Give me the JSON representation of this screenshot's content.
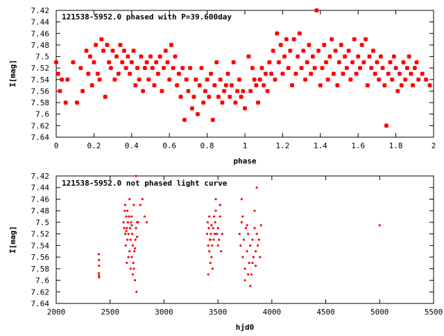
{
  "colors": {
    "points": "#ff0000",
    "axes": "#000000",
    "background": "#ffffff"
  },
  "chart_data": [
    {
      "type": "scatter",
      "annotation": "121538-5952.0 phased with P=39.600day",
      "xlabel": "phase",
      "ylabel": "I[mag]",
      "xlim": [
        0,
        2
      ],
      "ylim": [
        7.64,
        7.42
      ],
      "y_inverted": true,
      "grid": false,
      "x_ticks": [
        "0",
        "0.2",
        "0.4",
        "0.6",
        "0.8",
        "1",
        "1.2",
        "1.4",
        "1.6",
        "1.8",
        "2"
      ],
      "y_ticks": [
        "7.42",
        "7.44",
        "7.46",
        "7.48",
        "7.5",
        "7.52",
        "7.54",
        "7.56",
        "7.58",
        "7.6",
        "7.62",
        "7.64"
      ],
      "marker": "star",
      "points": [
        [
          0.0,
          7.51
        ],
        [
          0.01,
          7.53
        ],
        [
          0.02,
          7.56
        ],
        [
          0.03,
          7.54
        ],
        [
          0.05,
          7.58
        ],
        [
          0.06,
          7.54
        ],
        [
          0.09,
          7.51
        ],
        [
          0.11,
          7.58
        ],
        [
          0.13,
          7.52
        ],
        [
          0.14,
          7.56
        ],
        [
          0.16,
          7.49
        ],
        [
          0.17,
          7.53
        ],
        [
          0.18,
          7.5
        ],
        [
          0.19,
          7.55
        ],
        [
          0.2,
          7.51
        ],
        [
          0.21,
          7.48
        ],
        [
          0.22,
          7.53
        ],
        [
          0.23,
          7.54
        ],
        [
          0.24,
          7.47
        ],
        [
          0.25,
          7.49
        ],
        [
          0.26,
          7.57
        ],
        [
          0.27,
          7.48
        ],
        [
          0.28,
          7.51
        ],
        [
          0.29,
          7.52
        ],
        [
          0.3,
          7.49
        ],
        [
          0.31,
          7.54
        ],
        [
          0.32,
          7.5
        ],
        [
          0.33,
          7.53
        ],
        [
          0.34,
          7.48
        ],
        [
          0.35,
          7.51
        ],
        [
          0.36,
          7.49
        ],
        [
          0.37,
          7.52
        ],
        [
          0.38,
          7.5
        ],
        [
          0.39,
          7.53
        ],
        [
          0.4,
          7.51
        ],
        [
          0.41,
          7.49
        ],
        [
          0.42,
          7.55
        ],
        [
          0.43,
          7.52
        ],
        [
          0.44,
          7.54
        ],
        [
          0.45,
          7.5
        ],
        [
          0.46,
          7.56
        ],
        [
          0.47,
          7.52
        ],
        [
          0.48,
          7.51
        ],
        [
          0.49,
          7.54
        ],
        [
          0.5,
          7.5
        ],
        [
          0.51,
          7.52
        ],
        [
          0.52,
          7.55
        ],
        [
          0.53,
          7.51
        ],
        [
          0.54,
          7.53
        ],
        [
          0.55,
          7.5
        ],
        [
          0.56,
          7.56
        ],
        [
          0.57,
          7.52
        ],
        [
          0.58,
          7.49
        ],
        [
          0.59,
          7.51
        ],
        [
          0.6,
          7.54
        ],
        [
          0.61,
          7.48
        ],
        [
          0.62,
          7.52
        ],
        [
          0.63,
          7.5
        ],
        [
          0.64,
          7.55
        ],
        [
          0.65,
          7.53
        ],
        [
          0.66,
          7.57
        ],
        [
          0.67,
          7.52
        ],
        [
          0.68,
          7.61
        ],
        [
          0.69,
          7.54
        ],
        [
          0.7,
          7.56
        ],
        [
          0.71,
          7.52
        ],
        [
          0.72,
          7.59
        ],
        [
          0.73,
          7.57
        ],
        [
          0.74,
          7.54
        ],
        [
          0.75,
          7.6
        ],
        [
          0.76,
          7.55
        ],
        [
          0.77,
          7.52
        ],
        [
          0.78,
          7.58
        ],
        [
          0.79,
          7.56
        ],
        [
          0.8,
          7.54
        ],
        [
          0.81,
          7.57
        ],
        [
          0.82,
          7.53
        ],
        [
          0.83,
          7.61
        ],
        [
          0.84,
          7.55
        ],
        [
          0.85,
          7.51
        ],
        [
          0.86,
          7.57
        ],
        [
          0.87,
          7.54
        ],
        [
          0.88,
          7.58
        ],
        [
          0.89,
          7.56
        ],
        [
          0.9,
          7.55
        ],
        [
          0.91,
          7.53
        ],
        [
          0.92,
          7.57
        ],
        [
          0.93,
          7.55
        ],
        [
          0.94,
          7.51
        ],
        [
          0.95,
          7.58
        ],
        [
          0.96,
          7.56
        ],
        [
          0.97,
          7.54
        ],
        [
          0.98,
          7.57
        ],
        [
          0.99,
          7.56
        ],
        [
          1.0,
          7.59
        ],
        [
          1.02,
          7.5
        ],
        [
          1.03,
          7.56
        ],
        [
          1.04,
          7.52
        ],
        [
          1.05,
          7.54
        ],
        [
          1.06,
          7.55
        ],
        [
          1.07,
          7.58
        ],
        [
          1.08,
          7.54
        ],
        [
          1.09,
          7.52
        ],
        [
          1.1,
          7.55
        ],
        [
          1.11,
          7.53
        ],
        [
          1.12,
          7.56
        ],
        [
          1.13,
          7.51
        ],
        [
          1.14,
          7.53
        ],
        [
          1.15,
          7.49
        ],
        [
          1.16,
          7.54
        ],
        [
          1.17,
          7.46
        ],
        [
          1.18,
          7.51
        ],
        [
          1.19,
          7.48
        ],
        [
          1.2,
          7.53
        ],
        [
          1.21,
          7.5
        ],
        [
          1.22,
          7.47
        ],
        [
          1.23,
          7.52
        ],
        [
          1.24,
          7.49
        ],
        [
          1.25,
          7.55
        ],
        [
          1.26,
          7.47
        ],
        [
          1.27,
          7.53
        ],
        [
          1.28,
          7.5
        ],
        [
          1.29,
          7.46
        ],
        [
          1.3,
          7.52
        ],
        [
          1.31,
          7.49
        ],
        [
          1.32,
          7.54
        ],
        [
          1.33,
          7.51
        ],
        [
          1.34,
          7.48
        ],
        [
          1.35,
          7.53
        ],
        [
          1.36,
          7.5
        ],
        [
          1.37,
          7.52
        ],
        [
          1.38,
          7.42
        ],
        [
          1.39,
          7.49
        ],
        [
          1.4,
          7.55
        ],
        [
          1.41,
          7.52
        ],
        [
          1.42,
          7.48
        ],
        [
          1.43,
          7.51
        ],
        [
          1.44,
          7.54
        ],
        [
          1.45,
          7.5
        ],
        [
          1.46,
          7.47
        ],
        [
          1.47,
          7.53
        ],
        [
          1.48,
          7.49
        ],
        [
          1.49,
          7.55
        ],
        [
          1.5,
          7.51
        ],
        [
          1.51,
          7.48
        ],
        [
          1.52,
          7.53
        ],
        [
          1.53,
          7.5
        ],
        [
          1.54,
          7.52
        ],
        [
          1.55,
          7.49
        ],
        [
          1.56,
          7.54
        ],
        [
          1.57,
          7.51
        ],
        [
          1.58,
          7.47
        ],
        [
          1.59,
          7.53
        ],
        [
          1.6,
          7.5
        ],
        [
          1.61,
          7.52
        ],
        [
          1.62,
          7.48
        ],
        [
          1.63,
          7.51
        ],
        [
          1.64,
          7.47
        ],
        [
          1.65,
          7.55
        ],
        [
          1.66,
          7.5
        ],
        [
          1.67,
          7.52
        ],
        [
          1.68,
          7.49
        ],
        [
          1.69,
          7.53
        ],
        [
          1.7,
          7.51
        ],
        [
          1.71,
          7.54
        ],
        [
          1.72,
          7.5
        ],
        [
          1.73,
          7.52
        ],
        [
          1.74,
          7.55
        ],
        [
          1.75,
          7.62
        ],
        [
          1.76,
          7.53
        ],
        [
          1.77,
          7.51
        ],
        [
          1.78,
          7.54
        ],
        [
          1.79,
          7.5
        ],
        [
          1.8,
          7.52
        ],
        [
          1.81,
          7.56
        ],
        [
          1.82,
          7.53
        ],
        [
          1.83,
          7.55
        ],
        [
          1.84,
          7.51
        ],
        [
          1.85,
          7.54
        ],
        [
          1.86,
          7.52
        ],
        [
          1.87,
          7.5
        ],
        [
          1.88,
          7.53
        ],
        [
          1.89,
          7.55
        ],
        [
          1.9,
          7.52
        ],
        [
          1.91,
          7.51
        ],
        [
          1.92,
          7.54
        ],
        [
          1.94,
          7.53
        ],
        [
          1.96,
          7.54
        ],
        [
          1.98,
          7.55
        ]
      ]
    },
    {
      "type": "scatter",
      "annotation": "121538-5952.0 not phased light curve",
      "xlabel": "hjd0",
      "ylabel": "I[mag]",
      "xlim": [
        2000,
        5500
      ],
      "ylim": [
        7.64,
        7.42
      ],
      "y_inverted": true,
      "grid": false,
      "x_ticks": [
        "2000",
        "2500",
        "3000",
        "3500",
        "4000",
        "4500",
        "5000",
        "5500"
      ],
      "y_ticks": [
        "7.42",
        "7.44",
        "7.46",
        "7.48",
        "7.5",
        "7.52",
        "7.54",
        "7.56",
        "7.58",
        "7.6",
        "7.62",
        "7.64"
      ],
      "marker": "dot",
      "points": [
        [
          2395,
          7.555
        ],
        [
          2397,
          7.565
        ],
        [
          2398,
          7.575
        ],
        [
          2396,
          7.588
        ],
        [
          2397,
          7.592
        ],
        [
          2398,
          7.595
        ],
        [
          2625,
          7.5
        ],
        [
          2630,
          7.51
        ],
        [
          2635,
          7.48
        ],
        [
          2640,
          7.52
        ],
        [
          2645,
          7.54
        ],
        [
          2650,
          7.49
        ],
        [
          2655,
          7.51
        ],
        [
          2660,
          7.53
        ],
        [
          2665,
          7.5
        ],
        [
          2670,
          7.52
        ],
        [
          2675,
          7.49
        ],
        [
          2680,
          7.55
        ],
        [
          2685,
          7.51
        ],
        [
          2690,
          7.53
        ],
        [
          2695,
          7.5
        ],
        [
          2700,
          7.56
        ],
        [
          2705,
          7.52
        ],
        [
          2710,
          7.54
        ],
        [
          2715,
          7.57
        ],
        [
          2720,
          7.58
        ],
        [
          2725,
          7.55
        ],
        [
          2730,
          7.6
        ],
        [
          2735,
          7.53
        ],
        [
          2740,
          7.51
        ],
        [
          2745,
          7.62
        ],
        [
          2750,
          7.5
        ],
        [
          2640,
          7.47
        ],
        [
          2660,
          7.48
        ],
        [
          2680,
          7.46
        ],
        [
          2700,
          7.49
        ],
        [
          2720,
          7.47
        ],
        [
          2740,
          7.42
        ],
        [
          2760,
          7.5
        ],
        [
          2780,
          7.47
        ],
        [
          2800,
          7.46
        ],
        [
          2820,
          7.49
        ],
        [
          2840,
          7.5
        ],
        [
          2655,
          7.57
        ],
        [
          2670,
          7.56
        ],
        [
          2690,
          7.58
        ],
        [
          2710,
          7.59
        ],
        [
          2730,
          7.545
        ],
        [
          2650,
          7.515
        ],
        [
          2700,
          7.505
        ],
        [
          2750,
          7.525
        ],
        [
          3400,
          7.52
        ],
        [
          3405,
          7.5
        ],
        [
          3410,
          7.54
        ],
        [
          3415,
          7.51
        ],
        [
          3420,
          7.55
        ],
        [
          3425,
          7.53
        ],
        [
          3430,
          7.57
        ],
        [
          3435,
          7.52
        ],
        [
          3440,
          7.56
        ],
        [
          3445,
          7.54
        ],
        [
          3450,
          7.58
        ],
        [
          3455,
          7.51
        ],
        [
          3460,
          7.53
        ],
        [
          3465,
          7.49
        ],
        [
          3470,
          7.52
        ],
        [
          3475,
          7.5
        ],
        [
          3480,
          7.48
        ],
        [
          3490,
          7.52
        ],
        [
          3500,
          7.51
        ],
        [
          3510,
          7.53
        ],
        [
          3520,
          7.49
        ],
        [
          3530,
          7.55
        ],
        [
          3540,
          7.52
        ],
        [
          3410,
          7.59
        ],
        [
          3420,
          7.49
        ],
        [
          3430,
          7.53
        ],
        [
          3480,
          7.46
        ],
        [
          3520,
          7.47
        ],
        [
          3440,
          7.505
        ],
        [
          3500,
          7.54
        ],
        [
          3700,
          7.52
        ],
        [
          3710,
          7.54
        ],
        [
          3720,
          7.5
        ],
        [
          3730,
          7.56
        ],
        [
          3740,
          7.53
        ],
        [
          3750,
          7.58
        ],
        [
          3760,
          7.51
        ],
        [
          3770,
          7.55
        ],
        [
          3780,
          7.52
        ],
        [
          3790,
          7.57
        ],
        [
          3800,
          7.54
        ],
        [
          3810,
          7.59
        ],
        [
          3820,
          7.53
        ],
        [
          3830,
          7.56
        ],
        [
          3840,
          7.51
        ],
        [
          3850,
          7.55
        ],
        [
          3860,
          7.52
        ],
        [
          3870,
          7.54
        ],
        [
          3880,
          7.53
        ],
        [
          3890,
          7.56
        ],
        [
          3900,
          7.505
        ],
        [
          3720,
          7.46
        ],
        [
          3750,
          7.6
        ],
        [
          3780,
          7.59
        ],
        [
          3800,
          7.61
        ],
        [
          3840,
          7.48
        ],
        [
          3860,
          7.44
        ],
        [
          3730,
          7.49
        ],
        [
          3770,
          7.505
        ],
        [
          3820,
          7.57
        ],
        [
          3850,
          7.575
        ],
        [
          5000,
          7.505
        ]
      ]
    }
  ]
}
